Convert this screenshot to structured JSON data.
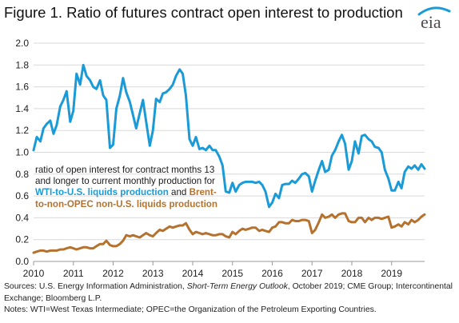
{
  "title": "Figure 1. Ratio of futures contract open interest to production",
  "logo_text": "eia",
  "annotation": {
    "lead": "ratio of open interest for contract months 13 and longer to current monthly production for ",
    "wti": "WTI-to-U.S. liquids production",
    "mid": " and ",
    "brent": "Brent-to-non-OPEC non-U.S. liquids production"
  },
  "footer": {
    "sources_lead": "Sources: U.S. Energy Information Administration, ",
    "sources_italic": "Short-Term Energy Outlook",
    "sources_tail": ", October 2019; CME Group; Intercontinental Exchange; Bloomberg L.P.",
    "notes": "Notes: WTI=West Texas Intermediate; OPEC=the Organization of the Petroleum Exporting Countries."
  },
  "colors": {
    "wti": "#1a9bd7",
    "brent": "#b5722e",
    "gridline": "#d9d9d9",
    "axis": "#999999",
    "logo": "#1a9bd7"
  },
  "chart_data": {
    "type": "line",
    "title": "Figure 1. Ratio of futures contract open interest to production",
    "xlabel": "",
    "ylabel": "",
    "x_ticks": [
      "2010",
      "2011",
      "2012",
      "2013",
      "2014",
      "2015",
      "2016",
      "2017",
      "2018",
      "2019"
    ],
    "xlim": [
      2010,
      2019.83
    ],
    "y_ticks": [
      "0.0",
      "0.2",
      "0.4",
      "0.6",
      "0.8",
      "1.0",
      "1.2",
      "1.4",
      "1.6",
      "1.8",
      "2.0"
    ],
    "ylim": [
      0,
      2.0
    ],
    "grid": "horizontal",
    "series": [
      {
        "name": "WTI-to-U.S. liquids production",
        "color": "#1a9bd7",
        "x": [
          2010.0,
          2010.08,
          2010.17,
          2010.25,
          2010.33,
          2010.42,
          2010.5,
          2010.58,
          2010.67,
          2010.75,
          2010.83,
          2010.92,
          2011.0,
          2011.08,
          2011.17,
          2011.25,
          2011.33,
          2011.42,
          2011.5,
          2011.58,
          2011.67,
          2011.75,
          2011.83,
          2011.92,
          2012.0,
          2012.08,
          2012.17,
          2012.25,
          2012.33,
          2012.42,
          2012.5,
          2012.58,
          2012.67,
          2012.75,
          2012.83,
          2012.92,
          2013.0,
          2013.08,
          2013.17,
          2013.25,
          2013.33,
          2013.42,
          2013.5,
          2013.58,
          2013.67,
          2013.75,
          2013.83,
          2013.92,
          2014.0,
          2014.08,
          2014.17,
          2014.25,
          2014.33,
          2014.42,
          2014.5,
          2014.58,
          2014.67,
          2014.75,
          2014.83,
          2014.92,
          2015.0,
          2015.08,
          2015.17,
          2015.25,
          2015.33,
          2015.42,
          2015.5,
          2015.58,
          2015.67,
          2015.75,
          2015.83,
          2015.92,
          2016.0,
          2016.08,
          2016.17,
          2016.25,
          2016.33,
          2016.42,
          2016.5,
          2016.58,
          2016.67,
          2016.75,
          2016.83,
          2016.92,
          2017.0,
          2017.08,
          2017.17,
          2017.25,
          2017.33,
          2017.42,
          2017.5,
          2017.58,
          2017.67,
          2017.75,
          2017.83,
          2017.92,
          2018.0,
          2018.08,
          2018.17,
          2018.25,
          2018.33,
          2018.42,
          2018.5,
          2018.58,
          2018.67,
          2018.75,
          2018.83,
          2018.92,
          2019.0,
          2019.08,
          2019.17,
          2019.25,
          2019.33,
          2019.42,
          2019.5,
          2019.58,
          2019.67,
          2019.75,
          2019.83
        ],
        "y": [
          1.02,
          1.14,
          1.1,
          1.22,
          1.26,
          1.29,
          1.17,
          1.25,
          1.42,
          1.48,
          1.56,
          1.28,
          1.38,
          1.72,
          1.62,
          1.8,
          1.7,
          1.66,
          1.6,
          1.58,
          1.66,
          1.52,
          1.48,
          1.04,
          1.07,
          1.4,
          1.52,
          1.68,
          1.55,
          1.46,
          1.34,
          1.22,
          1.36,
          1.48,
          1.28,
          1.06,
          1.2,
          1.49,
          1.46,
          1.54,
          1.55,
          1.58,
          1.62,
          1.7,
          1.76,
          1.72,
          1.52,
          1.12,
          1.06,
          1.14,
          1.03,
          1.04,
          1.02,
          1.06,
          1.02,
          1.02,
          0.96,
          0.88,
          0.64,
          0.63,
          0.72,
          0.64,
          0.7,
          0.72,
          0.73,
          0.73,
          0.73,
          0.72,
          0.73,
          0.7,
          0.64,
          0.5,
          0.54,
          0.62,
          0.58,
          0.7,
          0.71,
          0.71,
          0.74,
          0.72,
          0.76,
          0.8,
          0.81,
          0.78,
          0.64,
          0.74,
          0.84,
          0.92,
          0.82,
          0.84,
          0.97,
          1.02,
          1.1,
          1.16,
          1.08,
          0.84,
          0.92,
          1.1,
          0.99,
          1.15,
          1.16,
          1.12,
          1.1,
          1.05,
          1.04,
          1.0,
          0.84,
          0.76,
          0.65,
          0.65,
          0.73,
          0.67,
          0.82,
          0.87,
          0.85,
          0.88,
          0.84,
          0.89,
          0.85
        ]
      },
      {
        "name": "Brent-to-non-OPEC non-U.S. liquids production",
        "color": "#b5722e",
        "x": [
          2010.0,
          2010.08,
          2010.17,
          2010.25,
          2010.33,
          2010.42,
          2010.5,
          2010.58,
          2010.67,
          2010.75,
          2010.83,
          2010.92,
          2011.0,
          2011.08,
          2011.17,
          2011.25,
          2011.33,
          2011.42,
          2011.5,
          2011.58,
          2011.67,
          2011.75,
          2011.83,
          2011.92,
          2012.0,
          2012.08,
          2012.17,
          2012.25,
          2012.33,
          2012.42,
          2012.5,
          2012.58,
          2012.67,
          2012.75,
          2012.83,
          2012.92,
          2013.0,
          2013.08,
          2013.17,
          2013.25,
          2013.33,
          2013.42,
          2013.5,
          2013.58,
          2013.67,
          2013.75,
          2013.83,
          2013.92,
          2014.0,
          2014.08,
          2014.17,
          2014.25,
          2014.33,
          2014.42,
          2014.5,
          2014.58,
          2014.67,
          2014.75,
          2014.83,
          2014.92,
          2015.0,
          2015.08,
          2015.17,
          2015.25,
          2015.33,
          2015.42,
          2015.5,
          2015.58,
          2015.67,
          2015.75,
          2015.83,
          2015.92,
          2016.0,
          2016.08,
          2016.17,
          2016.25,
          2016.33,
          2016.42,
          2016.5,
          2016.58,
          2016.67,
          2016.75,
          2016.83,
          2016.92,
          2017.0,
          2017.08,
          2017.17,
          2017.25,
          2017.33,
          2017.42,
          2017.5,
          2017.58,
          2017.67,
          2017.75,
          2017.83,
          2017.92,
          2018.0,
          2018.08,
          2018.17,
          2018.25,
          2018.33,
          2018.42,
          2018.5,
          2018.58,
          2018.67,
          2018.75,
          2018.83,
          2018.92,
          2019.0,
          2019.08,
          2019.17,
          2019.25,
          2019.33,
          2019.42,
          2019.5,
          2019.58,
          2019.67,
          2019.75,
          2019.83
        ],
        "y": [
          0.08,
          0.09,
          0.1,
          0.1,
          0.09,
          0.1,
          0.1,
          0.1,
          0.11,
          0.11,
          0.12,
          0.13,
          0.12,
          0.11,
          0.12,
          0.13,
          0.13,
          0.12,
          0.12,
          0.14,
          0.16,
          0.16,
          0.19,
          0.15,
          0.14,
          0.14,
          0.16,
          0.19,
          0.24,
          0.23,
          0.24,
          0.23,
          0.22,
          0.24,
          0.26,
          0.24,
          0.23,
          0.26,
          0.29,
          0.28,
          0.3,
          0.32,
          0.31,
          0.32,
          0.33,
          0.33,
          0.35,
          0.29,
          0.25,
          0.27,
          0.26,
          0.25,
          0.26,
          0.25,
          0.24,
          0.24,
          0.25,
          0.25,
          0.23,
          0.22,
          0.27,
          0.25,
          0.28,
          0.3,
          0.29,
          0.3,
          0.31,
          0.31,
          0.28,
          0.29,
          0.28,
          0.27,
          0.31,
          0.32,
          0.36,
          0.36,
          0.35,
          0.35,
          0.38,
          0.37,
          0.37,
          0.38,
          0.38,
          0.37,
          0.26,
          0.29,
          0.36,
          0.43,
          0.4,
          0.41,
          0.43,
          0.4,
          0.43,
          0.44,
          0.44,
          0.37,
          0.36,
          0.36,
          0.4,
          0.4,
          0.36,
          0.4,
          0.38,
          0.4,
          0.4,
          0.39,
          0.4,
          0.41,
          0.31,
          0.32,
          0.34,
          0.32,
          0.36,
          0.34,
          0.38,
          0.36,
          0.38,
          0.41,
          0.43
        ]
      }
    ]
  }
}
